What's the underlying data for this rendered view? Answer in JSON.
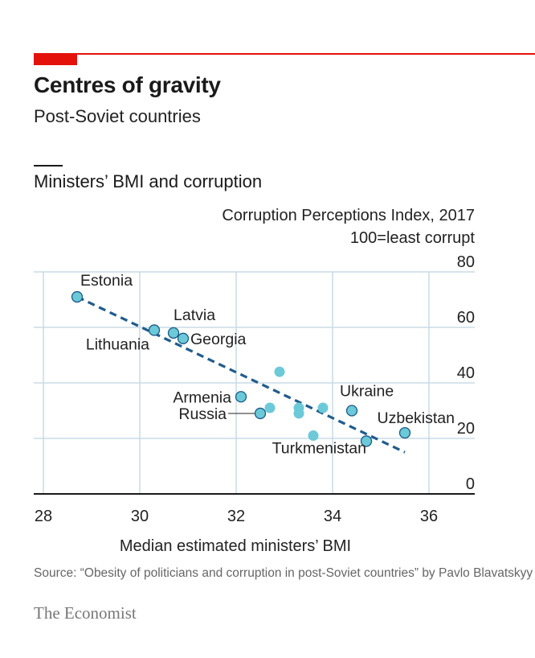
{
  "header": {
    "title": "Centres of gravity",
    "subtitle": "Post-Soviet countries"
  },
  "chart_data": {
    "type": "scatter",
    "title": "Ministers’ BMI and corruption",
    "ylabel": "Corruption Perceptions Index, 2017",
    "ylabel_note": "100=least corrupt",
    "xlabel": "Median estimated ministers’ BMI",
    "xlim": [
      28,
      37
    ],
    "ylim": [
      0,
      80
    ],
    "xticks": [
      28,
      30,
      32,
      34,
      36
    ],
    "yticks": [
      0,
      20,
      40,
      60,
      80
    ],
    "grid": true,
    "points": [
      {
        "label": "Estonia",
        "x": 28.7,
        "y": 71,
        "highlight": true
      },
      {
        "label": "Lithuania",
        "x": 30.3,
        "y": 59,
        "highlight": true
      },
      {
        "label": "Latvia",
        "x": 30.7,
        "y": 58,
        "highlight": true
      },
      {
        "label": "Georgia",
        "x": 30.9,
        "y": 56,
        "highlight": true
      },
      {
        "label": "Armenia",
        "x": 32.1,
        "y": 35,
        "highlight": true
      },
      {
        "label": "Russia",
        "x": 32.5,
        "y": 29,
        "highlight": true
      },
      {
        "label": "Ukraine",
        "x": 34.4,
        "y": 30,
        "highlight": true
      },
      {
        "label": "Turkmenistan",
        "x": 34.7,
        "y": 19,
        "highlight": true
      },
      {
        "label": "Uzbekistan",
        "x": 35.5,
        "y": 22,
        "highlight": true
      },
      {
        "label": "",
        "x": 32.9,
        "y": 44,
        "highlight": false
      },
      {
        "label": "",
        "x": 32.7,
        "y": 31,
        "highlight": false
      },
      {
        "label": "",
        "x": 33.3,
        "y": 31,
        "highlight": false
      },
      {
        "label": "",
        "x": 33.3,
        "y": 29,
        "highlight": false
      },
      {
        "label": "",
        "x": 33.8,
        "y": 31,
        "highlight": false
      },
      {
        "label": "",
        "x": 33.6,
        "y": 21,
        "highlight": false
      }
    ],
    "trendline": {
      "x": [
        28.7,
        35.5
      ],
      "y": [
        71,
        15
      ]
    }
  },
  "footer": {
    "source": "Source: “Obesity of politicians and corruption in post-Soviet countries” by Pavlo Blavatskyy",
    "brand": "The Economist"
  },
  "colors": {
    "accent": "#e3120b",
    "point_fill": "#6cc9d8",
    "point_stroke": "#1c5a87",
    "trendline": "#1f5c8e",
    "grid": "#c9dbe6"
  }
}
